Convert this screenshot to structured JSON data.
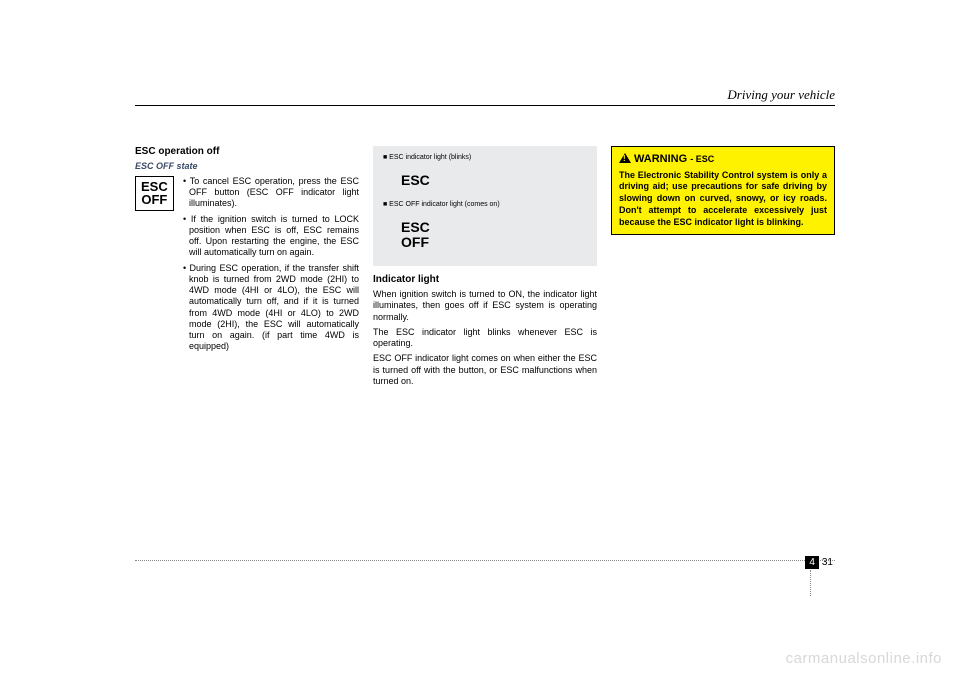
{
  "header": {
    "section": "Driving your vehicle"
  },
  "col1": {
    "title": "ESC operation off",
    "subtitle": "ESC OFF state",
    "box_line1": "ESC",
    "box_line2": "OFF",
    "bullets": [
      "To cancel ESC operation, press the ESC OFF button (ESC OFF indicator light illuminates).",
      "If the ignition switch is turned to LOCK position when ESC is off, ESC remains off. Upon restarting the engine, the ESC will automatically turn on again.",
      "During ESC operation, if the transfer shift knob is turned from 2WD mode (2HI) to 4WD mode (4HI or 4LO), the ESC will automatically turn off, and if it is turned from 4WD mode (4HI or 4LO) to 2WD mode (2HI), the ESC will automatically turn on again. (if part time 4WD is equipped)"
    ]
  },
  "col2": {
    "panel": {
      "cap1": "■ ESC indicator light (blinks)",
      "label1": "ESC",
      "cap2": "■ ESC OFF indicator light (comes on)",
      "label2a": "ESC",
      "label2b": "OFF"
    },
    "heading": "Indicator light",
    "paras": [
      "When ignition switch is turned to ON, the indicator light illuminates, then goes off if ESC system is operating normally.",
      "The ESC indicator light blinks whenever ESC is operating.",
      "ESC OFF indicator light comes on when either the ESC is turned off with the button, or ESC malfunctions when turned on."
    ]
  },
  "col3": {
    "warn_title": "WARNING",
    "warn_sub": "- ESC",
    "warn_body": "The Electronic Stability Control system is only a driving aid; use precautions for safe driving by slowing down on curved, snowy, or icy roads. Don't attempt to accelerate excessively just because the ESC indicator light is blinking."
  },
  "footer": {
    "section": "4",
    "page": "31"
  },
  "watermark": "carmanualsonline.info"
}
